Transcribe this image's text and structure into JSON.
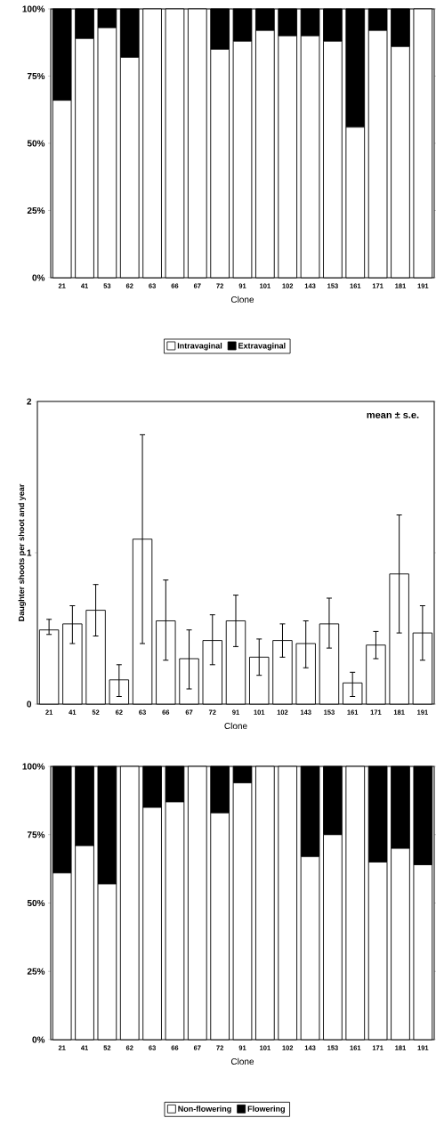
{
  "chart_data": [
    {
      "type": "bar",
      "stacked": true,
      "categories": [
        "21",
        "41",
        "53",
        "62",
        "63",
        "66",
        "67",
        "72",
        "91",
        "101",
        "102",
        "143",
        "153",
        "161",
        "171",
        "181",
        "191"
      ],
      "series": [
        {
          "name": "Intravaginal",
          "color": "#ffffff",
          "values": [
            66,
            89,
            93,
            82,
            100,
            100,
            100,
            85,
            88,
            92,
            90,
            90,
            88,
            56,
            92,
            86,
            100
          ]
        },
        {
          "name": "Extravaginal",
          "color": "#000000",
          "values": [
            34,
            11,
            7,
            18,
            0,
            0,
            0,
            15,
            12,
            8,
            10,
            10,
            12,
            44,
            8,
            14,
            0
          ]
        }
      ],
      "ylim": [
        0,
        100
      ],
      "yticks": [
        {
          "value": 0,
          "label": "0%"
        },
        {
          "value": 25,
          "label": "25%"
        },
        {
          "value": 50,
          "label": "50%"
        },
        {
          "value": 75,
          "label": "75%"
        },
        {
          "value": 100,
          "label": "100%"
        }
      ],
      "xlabel": "Clone",
      "legend": "bottom"
    },
    {
      "type": "bar",
      "categories": [
        "21",
        "41",
        "52",
        "62",
        "63",
        "66",
        "67",
        "72",
        "91",
        "101",
        "102",
        "143",
        "153",
        "161",
        "171",
        "181",
        "191"
      ],
      "values": [
        0.49,
        0.53,
        0.62,
        0.16,
        1.09,
        0.55,
        0.3,
        0.42,
        0.55,
        0.31,
        0.42,
        0.4,
        0.53,
        0.14,
        0.39,
        0.86,
        0.47
      ],
      "errors": [
        [
          0.46,
          0.56
        ],
        [
          0.4,
          0.65
        ],
        [
          0.45,
          0.79
        ],
        [
          0.05,
          0.26
        ],
        [
          0.4,
          1.78
        ],
        [
          0.29,
          0.82
        ],
        [
          0.1,
          0.49
        ],
        [
          0.26,
          0.59
        ],
        [
          0.38,
          0.72
        ],
        [
          0.19,
          0.43
        ],
        [
          0.31,
          0.53
        ],
        [
          0.24,
          0.55
        ],
        [
          0.37,
          0.7
        ],
        [
          0.05,
          0.21
        ],
        [
          0.3,
          0.48
        ],
        [
          0.47,
          1.25
        ],
        [
          0.29,
          0.65
        ]
      ],
      "color": "#ffffff",
      "ylim": [
        0,
        2
      ],
      "yticks": [
        0,
        1,
        2
      ],
      "xlabel": "Clone",
      "ylabel": "Daughter shoots per shoot and year",
      "annotations": [
        "mean ± s.e."
      ]
    },
    {
      "type": "bar",
      "stacked": true,
      "categories": [
        "21",
        "41",
        "52",
        "62",
        "63",
        "66",
        "67",
        "72",
        "91",
        "101",
        "102",
        "143",
        "153",
        "161",
        "171",
        "181",
        "191"
      ],
      "series": [
        {
          "name": "Non-flowering",
          "color": "#ffffff",
          "values": [
            61,
            71,
            57,
            100,
            85,
            87,
            100,
            83,
            94,
            100,
            100,
            67,
            75,
            100,
            65,
            70,
            64
          ]
        },
        {
          "name": "Flowering",
          "color": "#000000",
          "values": [
            39,
            29,
            43,
            0,
            15,
            13,
            0,
            17,
            6,
            0,
            0,
            33,
            25,
            0,
            35,
            30,
            36
          ]
        }
      ],
      "ylim": [
        0,
        100
      ],
      "yticks": [
        {
          "value": 0,
          "label": "0%"
        },
        {
          "value": 25,
          "label": "25%"
        },
        {
          "value": 50,
          "label": "50%"
        },
        {
          "value": 75,
          "label": "75%"
        },
        {
          "value": 100,
          "label": "100%"
        }
      ],
      "xlabel": "Clone",
      "legend": "bottom"
    }
  ]
}
